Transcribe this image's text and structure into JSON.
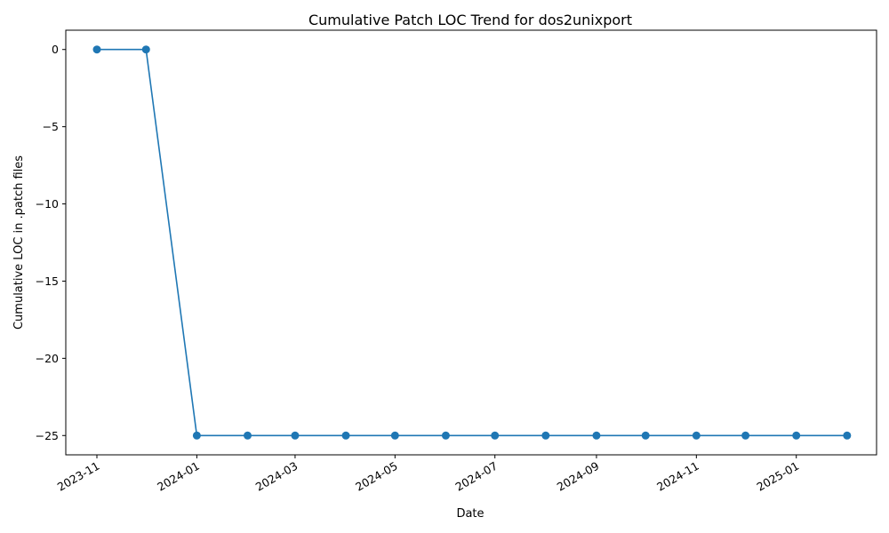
{
  "chart_data": {
    "type": "line",
    "title": "Cumulative Patch LOC Trend for dos2unixport",
    "xlabel": "Date",
    "ylabel": "Cumulative LOC in .patch files",
    "x_axis_type": "date",
    "xlim": [
      "2023-10-13",
      "2025-02-19"
    ],
    "ylim": [
      -26.25,
      1.25
    ],
    "y_ticks": [
      0,
      -5,
      -10,
      -15,
      -20,
      -25
    ],
    "y_tick_labels": [
      "0",
      "−5",
      "−10",
      "−15",
      "−20",
      "−25"
    ],
    "x_ticks": [
      "2023-11-01",
      "2024-01-01",
      "2024-03-01",
      "2024-05-01",
      "2024-07-01",
      "2024-09-01",
      "2024-11-01",
      "2025-01-01"
    ],
    "x_tick_labels": [
      "2023-11",
      "2024-01",
      "2024-03",
      "2024-05",
      "2024-07",
      "2024-09",
      "2024-11",
      "2025-01"
    ],
    "series": [
      {
        "marker": "circle",
        "color": "#1f77b4",
        "x": [
          "2023-11-01",
          "2023-12-01",
          "2024-01-01",
          "2024-02-01",
          "2024-03-01",
          "2024-04-01",
          "2024-05-01",
          "2024-06-01",
          "2024-07-01",
          "2024-08-01",
          "2024-09-01",
          "2024-10-01",
          "2024-11-01",
          "2024-12-01",
          "2025-01-01",
          "2025-02-01"
        ],
        "y": [
          0,
          0,
          -25,
          -25,
          -25,
          -25,
          -25,
          -25,
          -25,
          -25,
          -25,
          -25,
          -25,
          -25,
          -25,
          -25
        ]
      }
    ],
    "grid": false,
    "legend": "none"
  }
}
